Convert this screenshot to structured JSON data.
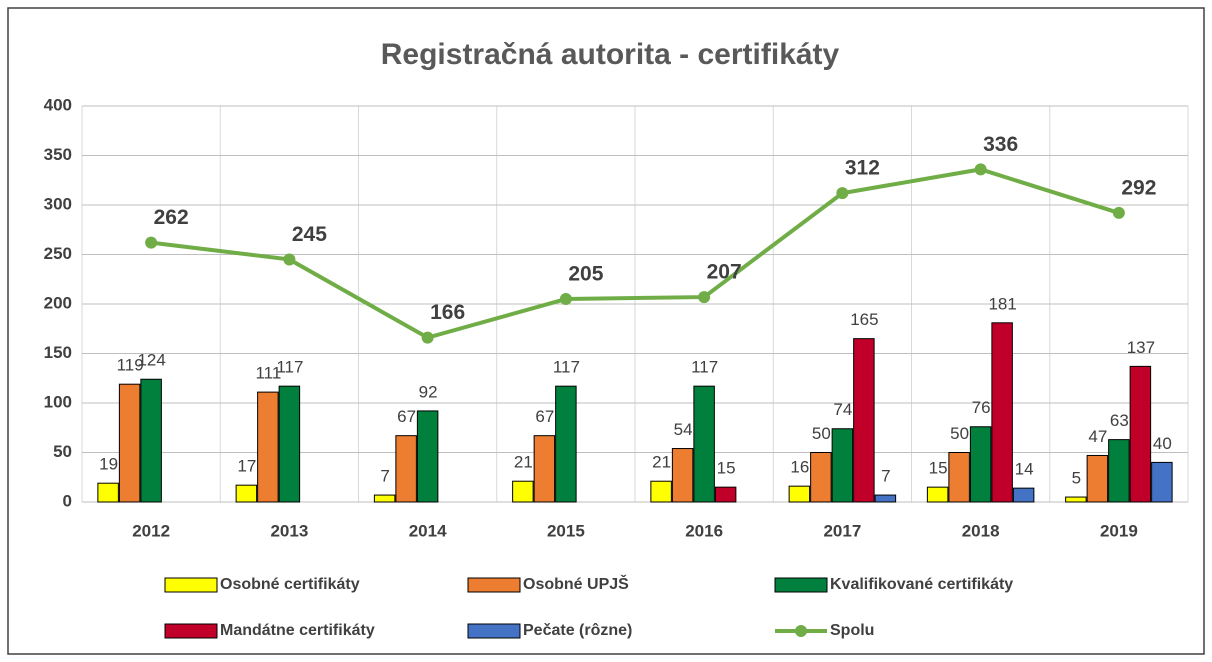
{
  "chart_data": {
    "type": "bar-line",
    "title": "Registračná autorita - certifikáty",
    "categories": [
      "2012",
      "2013",
      "2014",
      "2015",
      "2016",
      "2017",
      "2018",
      "2019"
    ],
    "series": [
      {
        "name": "Osobné certifikáty",
        "color": "#ffff00",
        "values": [
          19,
          17,
          7,
          21,
          21,
          16,
          15,
          5
        ]
      },
      {
        "name": "Osobné UPJŠ",
        "color": "#ed7d31",
        "values": [
          119,
          111,
          67,
          67,
          54,
          50,
          50,
          47
        ]
      },
      {
        "name": "Kvalifikované certifikáty",
        "color": "#00803c",
        "values": [
          124,
          117,
          92,
          117,
          117,
          74,
          76,
          63
        ]
      },
      {
        "name": "Mandátne certifikáty",
        "color": "#c00028",
        "values": [
          null,
          null,
          null,
          null,
          15,
          165,
          181,
          137
        ]
      },
      {
        "name": "Pečate (rôzne)",
        "color": "#4472c4",
        "values": [
          null,
          null,
          null,
          null,
          null,
          7,
          14,
          40
        ]
      },
      {
        "name": "Spolu",
        "color": "#70ad47",
        "line": true,
        "values": [
          262,
          245,
          166,
          205,
          207,
          312,
          336,
          292
        ]
      }
    ],
    "ylim": [
      0,
      400
    ],
    "yticks": [
      0,
      50,
      100,
      150,
      200,
      250,
      300,
      350,
      400
    ],
    "grid": true
  }
}
